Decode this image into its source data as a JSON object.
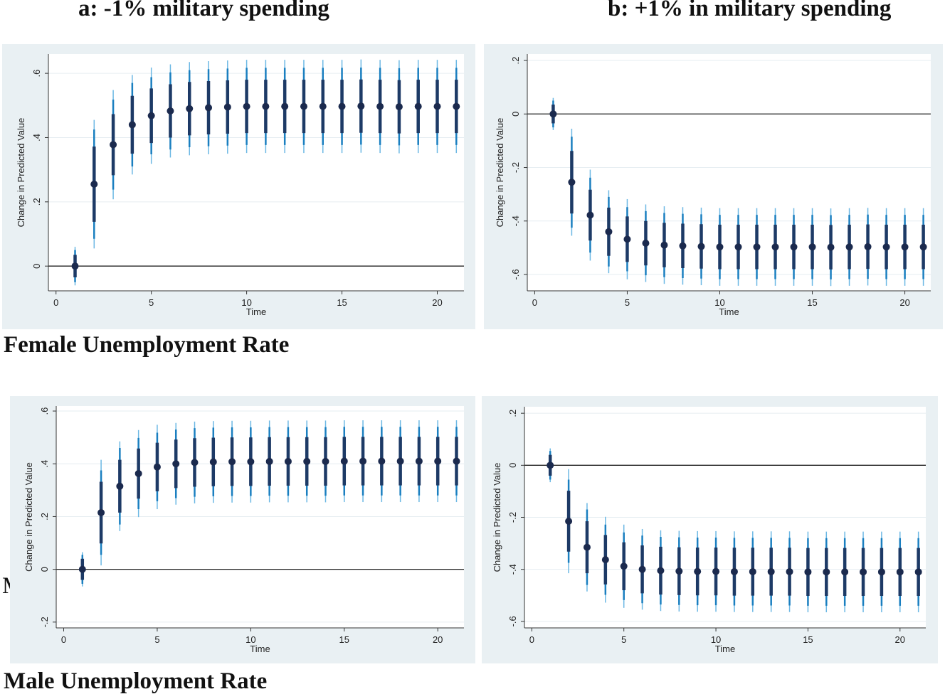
{
  "titles": {
    "a": "a:  -1% military spending",
    "b": "b: +1% in military spending"
  },
  "row_labels": {
    "female": "Female Unemployment Rate",
    "male": "Male Unemployment Rate",
    "stray_glyph": "M"
  },
  "colors": {
    "panel_bg": "#e9f0f3",
    "plot_bg": "#ffffff",
    "point": "#1b2a4e",
    "ci_90": "#1d3a66",
    "ci_95": "#1a7fc0",
    "ci_99": "#6cb8e4",
    "grid": "#e6edf1",
    "zero_line": "#222222"
  },
  "chart_data": [
    {
      "id": "female-a",
      "type": "scatter-errorbar",
      "title": "",
      "xlabel": "Time",
      "ylabel": "Change in Predicted Value",
      "xlim": [
        -0.4,
        21.4
      ],
      "ylim": [
        -0.077,
        0.66
      ],
      "xticks": [
        0,
        5,
        10,
        15,
        20
      ],
      "yticks": [
        0,
        0.2,
        0.4,
        0.6
      ],
      "ytick_labels": [
        "0",
        ".2",
        ".4",
        ".6"
      ],
      "grid": true,
      "zero_line": 0,
      "x": [
        1,
        2,
        3,
        4,
        5,
        6,
        7,
        8,
        9,
        10,
        11,
        12,
        13,
        14,
        15,
        16,
        17,
        18,
        19,
        20,
        21
      ],
      "values": [
        0,
        0.255,
        0.378,
        0.44,
        0.468,
        0.483,
        0.49,
        0.493,
        0.495,
        0.497,
        0.497,
        0.497,
        0.497,
        0.497,
        0.497,
        0.498,
        0.497,
        0.496,
        0.497,
        0.497,
        0.497
      ],
      "ci_half_width": {
        "inner": [
          0.035,
          0.117,
          0.095,
          0.09,
          0.085,
          0.083,
          0.083,
          0.083,
          0.083,
          0.083,
          0.083,
          0.083,
          0.083,
          0.083,
          0.083,
          0.083,
          0.083,
          0.083,
          0.083,
          0.083,
          0.083
        ],
        "middle": [
          0.05,
          0.17,
          0.14,
          0.13,
          0.12,
          0.12,
          0.12,
          0.12,
          0.12,
          0.12,
          0.12,
          0.12,
          0.12,
          0.12,
          0.12,
          0.12,
          0.12,
          0.12,
          0.12,
          0.12,
          0.12
        ],
        "outer": [
          0.06,
          0.2,
          0.17,
          0.155,
          0.15,
          0.145,
          0.145,
          0.145,
          0.145,
          0.145,
          0.145,
          0.145,
          0.145,
          0.145,
          0.145,
          0.145,
          0.145,
          0.145,
          0.145,
          0.145,
          0.145
        ]
      }
    },
    {
      "id": "female-b",
      "type": "scatter-errorbar",
      "title": "",
      "xlabel": "Time",
      "ylabel": "Change in Predicted Value",
      "xlim": [
        -0.4,
        21.4
      ],
      "ylim": [
        -0.661,
        0.224
      ],
      "xticks": [
        0,
        5,
        10,
        15,
        20
      ],
      "yticks": [
        -0.6,
        -0.4,
        -0.2,
        0,
        0.2
      ],
      "ytick_labels": [
        "-.6",
        "-.4",
        "-.2",
        "0",
        ".2"
      ],
      "grid": true,
      "zero_line": 0,
      "x": [
        1,
        2,
        3,
        4,
        5,
        6,
        7,
        8,
        9,
        10,
        11,
        12,
        13,
        14,
        15,
        16,
        17,
        18,
        19,
        20,
        21
      ],
      "values": [
        0,
        -0.255,
        -0.378,
        -0.44,
        -0.468,
        -0.483,
        -0.49,
        -0.493,
        -0.495,
        -0.497,
        -0.497,
        -0.497,
        -0.497,
        -0.497,
        -0.497,
        -0.498,
        -0.497,
        -0.496,
        -0.497,
        -0.497,
        -0.497
      ],
      "ci_half_width": {
        "inner": [
          0.035,
          0.117,
          0.095,
          0.09,
          0.085,
          0.083,
          0.083,
          0.083,
          0.083,
          0.083,
          0.083,
          0.083,
          0.083,
          0.083,
          0.083,
          0.083,
          0.083,
          0.083,
          0.083,
          0.083,
          0.083
        ],
        "middle": [
          0.05,
          0.17,
          0.14,
          0.13,
          0.12,
          0.12,
          0.12,
          0.12,
          0.12,
          0.12,
          0.12,
          0.12,
          0.12,
          0.12,
          0.12,
          0.12,
          0.12,
          0.12,
          0.12,
          0.12,
          0.12
        ],
        "outer": [
          0.06,
          0.2,
          0.17,
          0.155,
          0.15,
          0.145,
          0.145,
          0.145,
          0.145,
          0.145,
          0.145,
          0.145,
          0.145,
          0.145,
          0.145,
          0.145,
          0.145,
          0.145,
          0.145,
          0.145,
          0.145
        ]
      }
    },
    {
      "id": "male-a",
      "type": "scatter-errorbar",
      "title": "",
      "xlabel": "Time",
      "ylabel": "Change in Predicted Value",
      "xlim": [
        -0.4,
        21.4
      ],
      "ylim": [
        -0.222,
        0.619
      ],
      "xticks": [
        0,
        5,
        10,
        15,
        20
      ],
      "yticks": [
        -0.2,
        0,
        0.2,
        0.4,
        0.6
      ],
      "ytick_labels": [
        "-.2",
        "0",
        ".2",
        ".4",
        ".6"
      ],
      "grid": true,
      "zero_line": 0,
      "x": [
        1,
        2,
        3,
        4,
        5,
        6,
        7,
        8,
        9,
        10,
        11,
        12,
        13,
        14,
        15,
        16,
        17,
        18,
        19,
        20,
        21
      ],
      "values": [
        0,
        0.215,
        0.315,
        0.363,
        0.388,
        0.4,
        0.405,
        0.407,
        0.408,
        0.408,
        0.409,
        0.409,
        0.409,
        0.409,
        0.41,
        0.41,
        0.41,
        0.41,
        0.41,
        0.41,
        0.41
      ],
      "ci_half_width": {
        "inner": [
          0.04,
          0.117,
          0.1,
          0.095,
          0.092,
          0.092,
          0.092,
          0.092,
          0.092,
          0.092,
          0.092,
          0.092,
          0.092,
          0.092,
          0.092,
          0.092,
          0.092,
          0.092,
          0.092,
          0.092,
          0.092
        ],
        "middle": [
          0.055,
          0.16,
          0.145,
          0.135,
          0.13,
          0.13,
          0.13,
          0.13,
          0.13,
          0.13,
          0.13,
          0.13,
          0.13,
          0.13,
          0.13,
          0.13,
          0.13,
          0.13,
          0.13,
          0.13,
          0.13
        ],
        "outer": [
          0.065,
          0.2,
          0.17,
          0.165,
          0.16,
          0.155,
          0.155,
          0.155,
          0.155,
          0.155,
          0.155,
          0.155,
          0.155,
          0.155,
          0.155,
          0.155,
          0.155,
          0.155,
          0.155,
          0.155,
          0.155
        ]
      }
    },
    {
      "id": "male-b",
      "type": "scatter-errorbar",
      "title": "",
      "xlabel": "Time",
      "ylabel": "Change in Predicted Value",
      "xlim": [
        -0.4,
        21.4
      ],
      "ylim": [
        -0.625,
        0.225
      ],
      "xticks": [
        0,
        5,
        10,
        15,
        20
      ],
      "yticks": [
        -0.6,
        -0.4,
        -0.2,
        0,
        0.2
      ],
      "ytick_labels": [
        "-.6",
        "-.4",
        "-.2",
        "0",
        ".2"
      ],
      "grid": true,
      "zero_line": 0,
      "x": [
        1,
        2,
        3,
        4,
        5,
        6,
        7,
        8,
        9,
        10,
        11,
        12,
        13,
        14,
        15,
        16,
        17,
        18,
        19,
        20,
        21
      ],
      "values": [
        0,
        -0.215,
        -0.315,
        -0.363,
        -0.388,
        -0.4,
        -0.405,
        -0.407,
        -0.408,
        -0.408,
        -0.409,
        -0.409,
        -0.409,
        -0.409,
        -0.41,
        -0.41,
        -0.41,
        -0.41,
        -0.41,
        -0.41,
        -0.41
      ],
      "ci_half_width": {
        "inner": [
          0.04,
          0.117,
          0.1,
          0.095,
          0.092,
          0.092,
          0.092,
          0.092,
          0.092,
          0.092,
          0.092,
          0.092,
          0.092,
          0.092,
          0.092,
          0.092,
          0.092,
          0.092,
          0.092,
          0.092,
          0.092
        ],
        "middle": [
          0.055,
          0.16,
          0.145,
          0.135,
          0.13,
          0.13,
          0.13,
          0.13,
          0.13,
          0.13,
          0.13,
          0.13,
          0.13,
          0.13,
          0.13,
          0.13,
          0.13,
          0.13,
          0.13,
          0.13,
          0.13
        ],
        "outer": [
          0.065,
          0.2,
          0.17,
          0.165,
          0.16,
          0.155,
          0.155,
          0.155,
          0.155,
          0.155,
          0.155,
          0.155,
          0.155,
          0.155,
          0.155,
          0.155,
          0.155,
          0.155,
          0.155,
          0.155,
          0.155
        ]
      }
    }
  ]
}
